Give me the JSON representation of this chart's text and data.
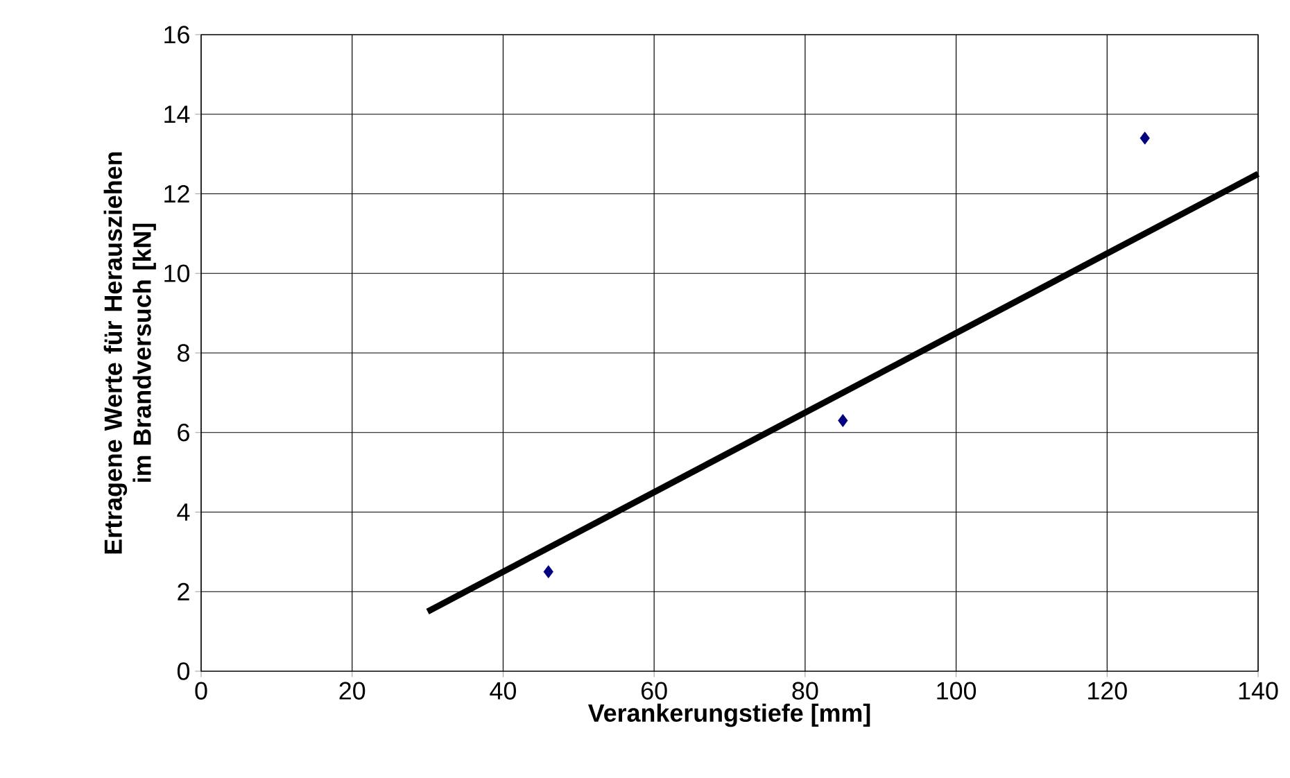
{
  "chart_data": {
    "type": "scatter",
    "xlabel": "Verankerungstiefe [mm]",
    "ylabel": "Ertragene Werte für Herausziehen im Brandversuch [kN]",
    "xlim": [
      0,
      140
    ],
    "xticks": [
      0,
      20,
      40,
      60,
      80,
      100,
      120,
      140
    ],
    "ylim": [
      0,
      16
    ],
    "yticks": [
      0,
      2,
      4,
      6,
      8,
      10,
      12,
      14,
      16
    ],
    "grid": true,
    "series": [
      {
        "x": [
          46,
          85,
          125
        ],
        "values": [
          2.5,
          6.3,
          13.4
        ],
        "color": "#000080",
        "marker": "diamond"
      },
      {
        "type": "line",
        "x": [
          30,
          140
        ],
        "values": [
          1.5,
          12.5
        ],
        "color": "#000000"
      }
    ]
  }
}
